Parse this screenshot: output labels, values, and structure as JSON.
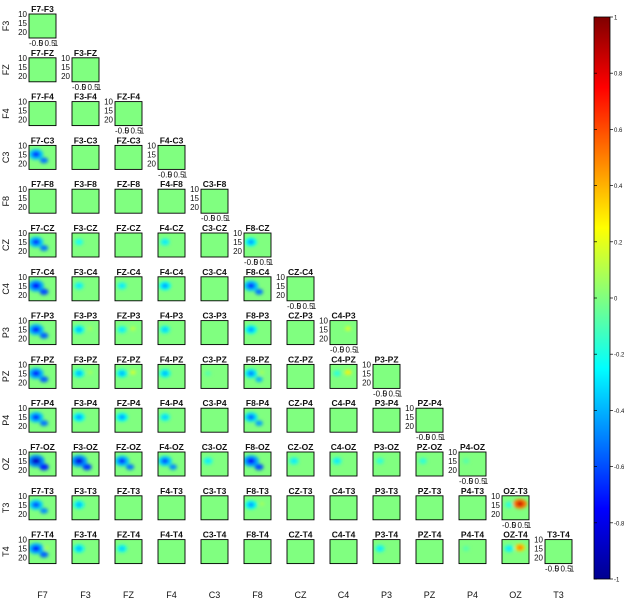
{
  "chart_data": {
    "type": "heatmap",
    "channels": [
      "F7",
      "F3",
      "FZ",
      "F4",
      "C3",
      "F8",
      "CZ",
      "C4",
      "P3",
      "PZ",
      "P4",
      "OZ",
      "T3",
      "T4"
    ],
    "panel_x_ticks": [
      "-0.5",
      "0",
      "0.5",
      "1"
    ],
    "panel_y_ticks": [
      "10",
      "15",
      "20"
    ],
    "panel_x_range": [
      -0.5,
      1
    ],
    "panel_y_range": [
      10,
      20
    ],
    "colorbar": {
      "ticks": [
        1,
        0.8,
        0.6,
        0.4,
        0.2,
        0,
        -0.2,
        -0.4,
        -0.6,
        -0.8,
        -1
      ],
      "range": [
        -1,
        1
      ],
      "colormap": "jet"
    },
    "background_value": 0,
    "background_color": "#80ff80",
    "panel_activity": {
      "F7-C3": [
        -0.65,
        0.05
      ],
      "F7-F8": [
        0.25,
        0
      ],
      "F3-F8": [
        0.2,
        0
      ],
      "C3-F8": [
        0.45,
        0
      ],
      "F7-CZ": [
        -0.65,
        0
      ],
      "F3-CZ": [
        -0.25,
        0
      ],
      "F4-CZ": [
        -0.3,
        0
      ],
      "F8-CZ": [
        -0.45,
        0
      ],
      "F7-C4": [
        -0.75,
        0
      ],
      "F3-C4": [
        -0.3,
        0
      ],
      "FZ-C4": [
        -0.3,
        0
      ],
      "F4-C4": [
        -0.45,
        0
      ],
      "F8-C4": [
        -0.65,
        0
      ],
      "F7-P3": [
        -0.7,
        0
      ],
      "F3-P3": [
        -0.4,
        0.1
      ],
      "FZ-P3": [
        -0.3,
        0.15
      ],
      "F4-P3": [
        -0.35,
        0
      ],
      "F8-P3": [
        -0.45,
        0
      ],
      "C4-P3": [
        0,
        0.2
      ],
      "F7-PZ": [
        -0.7,
        0
      ],
      "F3-PZ": [
        -0.4,
        0.1
      ],
      "FZ-PZ": [
        -0.4,
        0.2
      ],
      "F4-PZ": [
        -0.4,
        0
      ],
      "C3-PZ": [
        -0.1,
        0
      ],
      "F8-PZ": [
        -0.5,
        0.1
      ],
      "C4-PZ": [
        -0.2,
        0.3
      ],
      "F7-P4": [
        -0.65,
        0
      ],
      "F3-P4": [
        -0.45,
        0
      ],
      "FZ-P4": [
        -0.45,
        0
      ],
      "F4-P4": [
        -0.35,
        0
      ],
      "F8-P4": [
        -0.55,
        0
      ],
      "F7-OZ": [
        -0.85,
        0
      ],
      "F3-OZ": [
        -0.8,
        0
      ],
      "FZ-OZ": [
        -0.65,
        0
      ],
      "F4-OZ": [
        -0.6,
        0
      ],
      "C3-OZ": [
        -0.3,
        0
      ],
      "F8-OZ": [
        -0.75,
        0
      ],
      "CZ-OZ": [
        -0.3,
        0
      ],
      "C4-OZ": [
        -0.3,
        0
      ],
      "P3-OZ": [
        -0.2,
        0
      ],
      "PZ-OZ": [
        -0.2,
        0
      ],
      "P4-OZ": [
        -0.1,
        0
      ],
      "F7-T3": [
        -0.6,
        0
      ],
      "F3-T3": [
        -0.4,
        0
      ],
      "F8-T3": [
        -0.45,
        0.1
      ],
      "OZ-T3": [
        -0.2,
        0.85
      ],
      "F7-T4": [
        -0.7,
        0.1
      ],
      "F3-T4": [
        -0.4,
        0
      ],
      "FZ-T4": [
        -0.35,
        0
      ],
      "P3-T4": [
        -0.3,
        0
      ],
      "P4-T4": [
        -0.1,
        0
      ],
      "OZ-T4": [
        -0.3,
        0.55
      ],
      "T3-T4": [
        0,
        0
      ]
    }
  }
}
